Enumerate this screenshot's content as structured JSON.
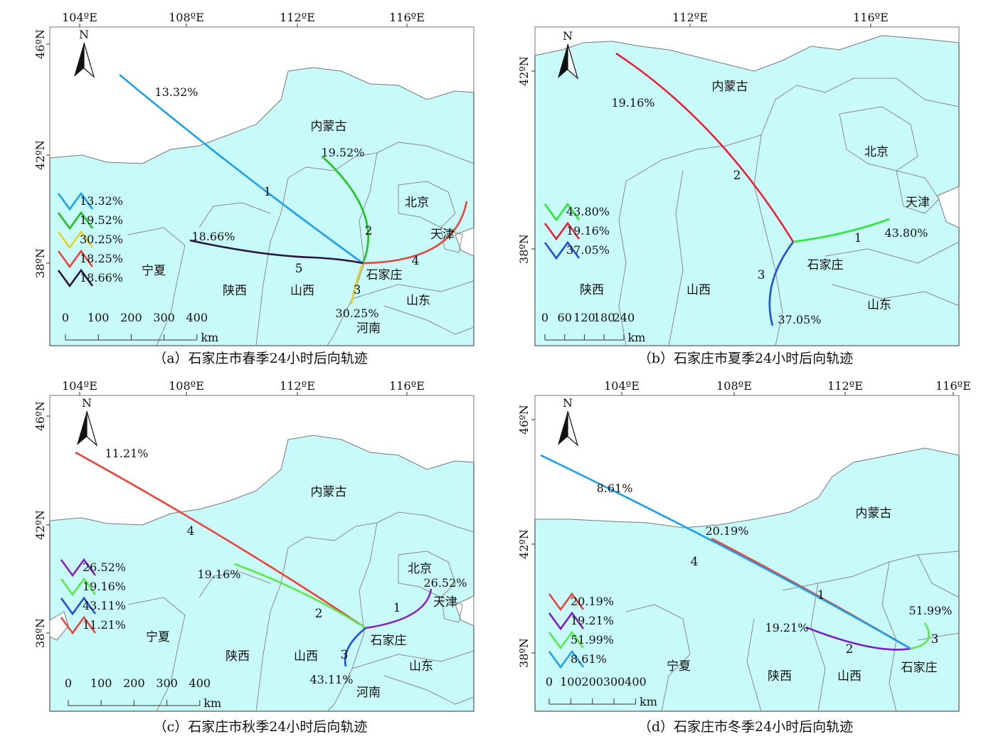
{
  "panels": [
    {
      "id": "a",
      "caption": "（a）石家庄市春季24小时后向轨迹",
      "lon_ticks": [
        "104ºE",
        "108ºE",
        "112ºE",
        "116ºE"
      ],
      "lat_ticks": [
        "46ºN",
        "42ºN",
        "38ºN"
      ],
      "regions": [
        "内蒙古",
        "北京",
        "天津",
        "宁夏",
        "陕西",
        "山西",
        "石家庄",
        "山东",
        "河南"
      ],
      "legend": [
        {
          "label": "13.32%",
          "color": "#1ea0e8"
        },
        {
          "label": "19.52%",
          "color": "#1fc21f"
        },
        {
          "label": "30.25%",
          "color": "#e8d22a"
        },
        {
          "label": "18.25%",
          "color": "#e8443a"
        },
        {
          "label": "18.66%",
          "color": "#2a1540"
        }
      ],
      "trajectories": [
        {
          "number": "1",
          "percent": "13.32%",
          "color": "#1ea0e8"
        },
        {
          "number": "2",
          "percent": "19.52%",
          "color": "#1fc21f"
        },
        {
          "number": "3",
          "percent": "30.25%",
          "color": "#e8d22a"
        },
        {
          "number": "4",
          "percent": "",
          "color": "#e8443a"
        },
        {
          "number": "5",
          "percent": "18.66%",
          "color": "#2a1540"
        }
      ],
      "scale": {
        "ticks": [
          "0",
          "100",
          "200",
          "300",
          "400"
        ],
        "unit": "km"
      },
      "north": "N"
    },
    {
      "id": "b",
      "caption": "（b）石家庄市夏季24小时后向轨迹",
      "lon_ticks": [
        "112ºE",
        "116ºE"
      ],
      "lat_ticks": [
        "42ºN",
        "38ºN"
      ],
      "regions": [
        "内蒙古",
        "北京",
        "天津",
        "陕西",
        "山西",
        "石家庄",
        "山东"
      ],
      "legend": [
        {
          "label": "43.80%",
          "color": "#2ee63a"
        },
        {
          "label": "19.16%",
          "color": "#e8213a"
        },
        {
          "label": "37.05%",
          "color": "#1f4fe0"
        }
      ],
      "trajectories": [
        {
          "number": "1",
          "percent": "43.80%",
          "color": "#2ee63a"
        },
        {
          "number": "2",
          "percent": "19.16%",
          "color": "#e8213a"
        },
        {
          "number": "3",
          "percent": "37.05%",
          "color": "#1f4fe0"
        }
      ],
      "scale": {
        "ticks": [
          "0",
          "60",
          "120",
          "180",
          "240"
        ],
        "unit": "km"
      },
      "north": "N"
    },
    {
      "id": "c",
      "caption": "（c）石家庄市秋季24小时后向轨迹",
      "lon_ticks": [
        "104ºE",
        "108ºE",
        "112ºE",
        "116ºE"
      ],
      "lat_ticks": [
        "46ºN",
        "42ºN",
        "38ºN"
      ],
      "regions": [
        "内蒙古",
        "北京",
        "天津",
        "宁夏",
        "陕西",
        "山西",
        "石家庄",
        "山东",
        "河南"
      ],
      "legend": [
        {
          "label": "26.52%",
          "color": "#8a1fc8"
        },
        {
          "label": "19.16%",
          "color": "#5ce84a"
        },
        {
          "label": "43.11%",
          "color": "#1f4fe0"
        },
        {
          "label": "11.21%",
          "color": "#e8443a"
        }
      ],
      "trajectories": [
        {
          "number": "1",
          "percent": "26.52%",
          "color": "#8a1fc8"
        },
        {
          "number": "2",
          "percent": "19.16%",
          "color": "#5ce84a"
        },
        {
          "number": "3",
          "percent": "43.11%",
          "color": "#1f4fe0"
        },
        {
          "number": "4",
          "percent": "11.21%",
          "color": "#e8443a"
        }
      ],
      "scale": {
        "ticks": [
          "0",
          "100",
          "200",
          "300",
          "400"
        ],
        "unit": "km"
      },
      "north": "N"
    },
    {
      "id": "d",
      "caption": "（d）石家庄市冬季24小时后向轨迹",
      "lon_ticks": [
        "104ºE",
        "108ºE",
        "112ºE",
        "116ºE"
      ],
      "lat_ticks": [
        "46ºN",
        "42ºN",
        "38ºN"
      ],
      "regions": [
        "内蒙古",
        "宁夏",
        "陕西",
        "山西",
        "石家庄"
      ],
      "legend": [
        {
          "label": "20.19%",
          "color": "#e8443a"
        },
        {
          "label": "19.21%",
          "color": "#7a1fc8"
        },
        {
          "label": "51.99%",
          "color": "#5ce84a"
        },
        {
          "label": "8.61%",
          "color": "#1ea0e8"
        }
      ],
      "trajectories": [
        {
          "number": "1",
          "percent": "20.19%",
          "color": "#e8443a"
        },
        {
          "number": "2",
          "percent": "19.21%",
          "color": "#7a1fc8"
        },
        {
          "number": "3",
          "percent": "51.99%",
          "color": "#5ce84a"
        },
        {
          "number": "4",
          "percent": "8.61%",
          "color": "#1ea0e8"
        }
      ],
      "scale": {
        "ticks": [
          "0",
          "100",
          "200",
          "300",
          "400"
        ],
        "unit": "km"
      },
      "north": "N"
    }
  ]
}
